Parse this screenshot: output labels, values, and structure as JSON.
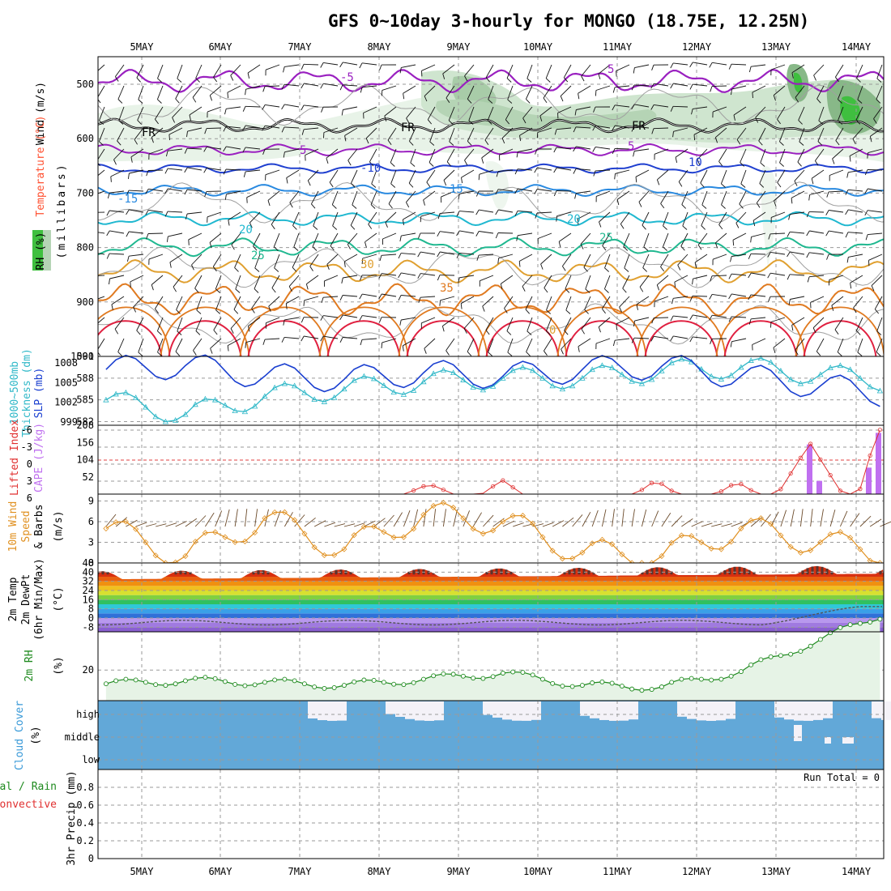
{
  "title": "GFS 0~10day 3-hourly for MONGO (18.75E, 12.25N)",
  "dates": [
    "5MAY",
    "6MAY",
    "7MAY",
    "8MAY",
    "9MAY",
    "10MAY",
    "11MAY",
    "12MAY",
    "13MAY",
    "14MAY"
  ],
  "panels": {
    "upper": {
      "labels": [
        "Wind (m/s)",
        "Temperature (°C)",
        "RH (%)",
        "(millibars)"
      ],
      "ticks": [
        "500",
        "600",
        "700",
        "800",
        "900",
        "1000"
      ],
      "contour_labels": [
        "-5",
        "5",
        "FR",
        "FR",
        "FR",
        "5",
        "5",
        "-10",
        "10",
        "-15",
        "15",
        "20",
        "20",
        "25",
        "25",
        "30",
        "35",
        "0"
      ]
    },
    "slp": {
      "labels": [
        "1000~500mb",
        "Thickness (dm)",
        "SLP (mb)"
      ],
      "left_ticks": [
        "591",
        "588",
        "585",
        "582"
      ],
      "right_ticks": [
        "1008",
        "1005",
        "1002",
        "999"
      ]
    },
    "cape": {
      "labels": [
        "Lifted Index",
        "CAPE (J/kg)"
      ],
      "left_ticks": [
        "-6",
        "-3",
        "0",
        "3",
        "6"
      ],
      "right_ticks": [
        "208",
        "156",
        "104",
        "52"
      ]
    },
    "wind10": {
      "labels": [
        "10m Wind",
        "Speed",
        "& Barbs",
        "(m/s)"
      ],
      "ticks": [
        "9",
        "6",
        "3",
        "0"
      ]
    },
    "temp": {
      "labels": [
        "2m Temp",
        "2m DewPt",
        "(6hr Min/Max)",
        "(°C)"
      ],
      "ticks": [
        "48",
        "40",
        "32",
        "24",
        "16",
        "8",
        "0",
        "-8"
      ]
    },
    "rh": {
      "labels": [
        "2m RH",
        "(%)"
      ],
      "ticks": [
        "20"
      ]
    },
    "cloud": {
      "labels": [
        "Cloud Cover",
        "(%)"
      ],
      "levels": [
        "high",
        "middle",
        "low"
      ]
    },
    "precip": {
      "labels": [
        "Total / Rain",
        "Convective",
        "3hr Precip (mm)"
      ],
      "ticks": [
        "0.8",
        "0.6",
        "0.4",
        "0.2",
        "0"
      ],
      "run_total": "Run Total = 0"
    }
  },
  "chart_data": [
    {
      "type": "line",
      "panel": "SLP and 1000~500mb thickness",
      "x": [
        "5MAY",
        "6MAY",
        "7MAY",
        "8MAY",
        "9MAY",
        "10MAY",
        "11MAY",
        "12MAY",
        "13MAY",
        "14MAY"
      ],
      "series": [
        {
          "name": "SLP (mb)",
          "values": [
            1007,
            1007.6,
            1006,
            1005.5,
            1006.5,
            1006,
            1007,
            1007.5,
            1006,
            1004.5
          ],
          "color": "#1a3fd0"
        },
        {
          "name": "1000~500mb Thickness (dm)",
          "values": [
            585,
            583,
            585.5,
            586.5,
            587.5,
            588,
            588,
            589,
            589.5,
            588.5
          ],
          "color": "#30b8c8"
        }
      ],
      "ylim_left": [
        581.5,
        591
      ],
      "ylim_right": [
        998.5,
        1009
      ]
    },
    {
      "type": "bar",
      "panel": "Lifted Index and CAPE",
      "categories": [
        "13MAY 09",
        "13MAY 12",
        "14MAY 06",
        "14MAY 09"
      ],
      "series": [
        {
          "name": "CAPE (J/kg)",
          "values": [
            150,
            40,
            80,
            185
          ],
          "color": "#c070f0"
        }
      ],
      "ylim": [
        0,
        208
      ]
    },
    {
      "type": "line",
      "panel": "10m wind speed",
      "x": [
        "5MAY",
        "6MAY",
        "7MAY",
        "8MAY",
        "9MAY",
        "10MAY",
        "11MAY",
        "12MAY",
        "13MAY",
        "14MAY"
      ],
      "series": [
        {
          "name": "Speed",
          "values": [
            5,
            1,
            6.5,
            2,
            7,
            6,
            1.5,
            1,
            5,
            3
          ],
          "color": "#e09020"
        }
      ],
      "ylim": [
        0,
        10
      ]
    },
    {
      "type": "line",
      "panel": "2m relative humidity",
      "x": [
        "5MAY",
        "6MAY",
        "7MAY",
        "8MAY",
        "9MAY",
        "10MAY",
        "11MAY",
        "12MAY",
        "13MAY",
        "14MAY"
      ],
      "series": [
        {
          "name": "2m RH",
          "values": [
            11,
            13,
            12,
            10,
            14,
            18,
            10,
            9,
            19,
            40
          ],
          "color": "#1e8a1e"
        }
      ],
      "ylim": [
        0,
        45
      ]
    }
  ]
}
